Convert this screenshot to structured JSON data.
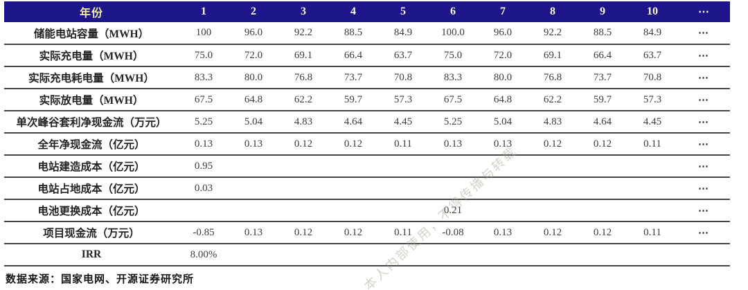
{
  "colors": {
    "header_bg": "#1c168a",
    "header_year_text": "#f2eca2",
    "header_number_text": "#fbfaf0",
    "row_rule": "#454545",
    "body_text": "#3c3c3c"
  },
  "source_note": "数据来源：国家电网、开源证券研究所",
  "watermark_text": "本人内部使用，不得传播与转载",
  "chart_data": {
    "type": "table",
    "col_header_label": "年份",
    "columns": [
      "1",
      "2",
      "3",
      "4",
      "5",
      "6",
      "7",
      "8",
      "9",
      "10"
    ],
    "ellipsis": "⋯",
    "header_has_ellipsis": true,
    "rows": [
      {
        "label": "储能电站容量（MWH）",
        "values": [
          "100",
          "96.0",
          "92.2",
          "88.5",
          "84.9",
          "100.0",
          "96.0",
          "92.2",
          "88.5",
          "84.9"
        ],
        "ellipsis": true
      },
      {
        "label": "实际充电量（MWH）",
        "values": [
          "75.0",
          "72.0",
          "69.1",
          "66.4",
          "63.7",
          "75.0",
          "72.0",
          "69.1",
          "66.4",
          "63.7"
        ],
        "ellipsis": true
      },
      {
        "label": "实际充电耗电量（MWH）",
        "values": [
          "83.3",
          "80.0",
          "76.8",
          "73.7",
          "70.8",
          "83.3",
          "80.0",
          "76.8",
          "73.7",
          "70.8"
        ],
        "ellipsis": true
      },
      {
        "label": "实际放电量（MWH）",
        "values": [
          "67.5",
          "64.8",
          "62.2",
          "59.7",
          "57.3",
          "67.5",
          "64.8",
          "62.2",
          "59.7",
          "57.3"
        ],
        "ellipsis": true
      },
      {
        "label": "单次峰谷套利净现金流（万元）",
        "values": [
          "5.25",
          "5.04",
          "4.83",
          "4.64",
          "4.45",
          "5.25",
          "5.04",
          "4.83",
          "4.64",
          "4.45"
        ],
        "ellipsis": true
      },
      {
        "label": "全年净现金流（亿元）",
        "values": [
          "0.13",
          "0.13",
          "0.12",
          "0.12",
          "0.11",
          "0.13",
          "0.13",
          "0.12",
          "0.12",
          "0.11"
        ],
        "ellipsis": true
      },
      {
        "label": "电站建造成本（亿元）",
        "values": [
          "0.95",
          "",
          "",
          "",
          "",
          "",
          "",
          "",
          "",
          ""
        ],
        "ellipsis": true
      },
      {
        "label": "电站占地成本（亿元）",
        "values": [
          "0.03",
          "",
          "",
          "",
          "",
          "",
          "",
          "",
          "",
          ""
        ],
        "ellipsis": true
      },
      {
        "label": "电池更换成本（亿元）",
        "values": [
          "",
          "",
          "",
          "",
          "",
          "0.21",
          "",
          "",
          "",
          ""
        ],
        "ellipsis": true
      },
      {
        "label": "项目现金流（万元）",
        "values": [
          "-0.85",
          "0.13",
          "0.12",
          "0.12",
          "0.11",
          "-0.08",
          "0.13",
          "0.12",
          "0.12",
          "0.11"
        ],
        "ellipsis": true
      },
      {
        "label": "IRR",
        "values": [
          "8.00%",
          "",
          "",
          "",
          "",
          "",
          "",
          "",
          "",
          ""
        ],
        "ellipsis": false
      }
    ]
  }
}
